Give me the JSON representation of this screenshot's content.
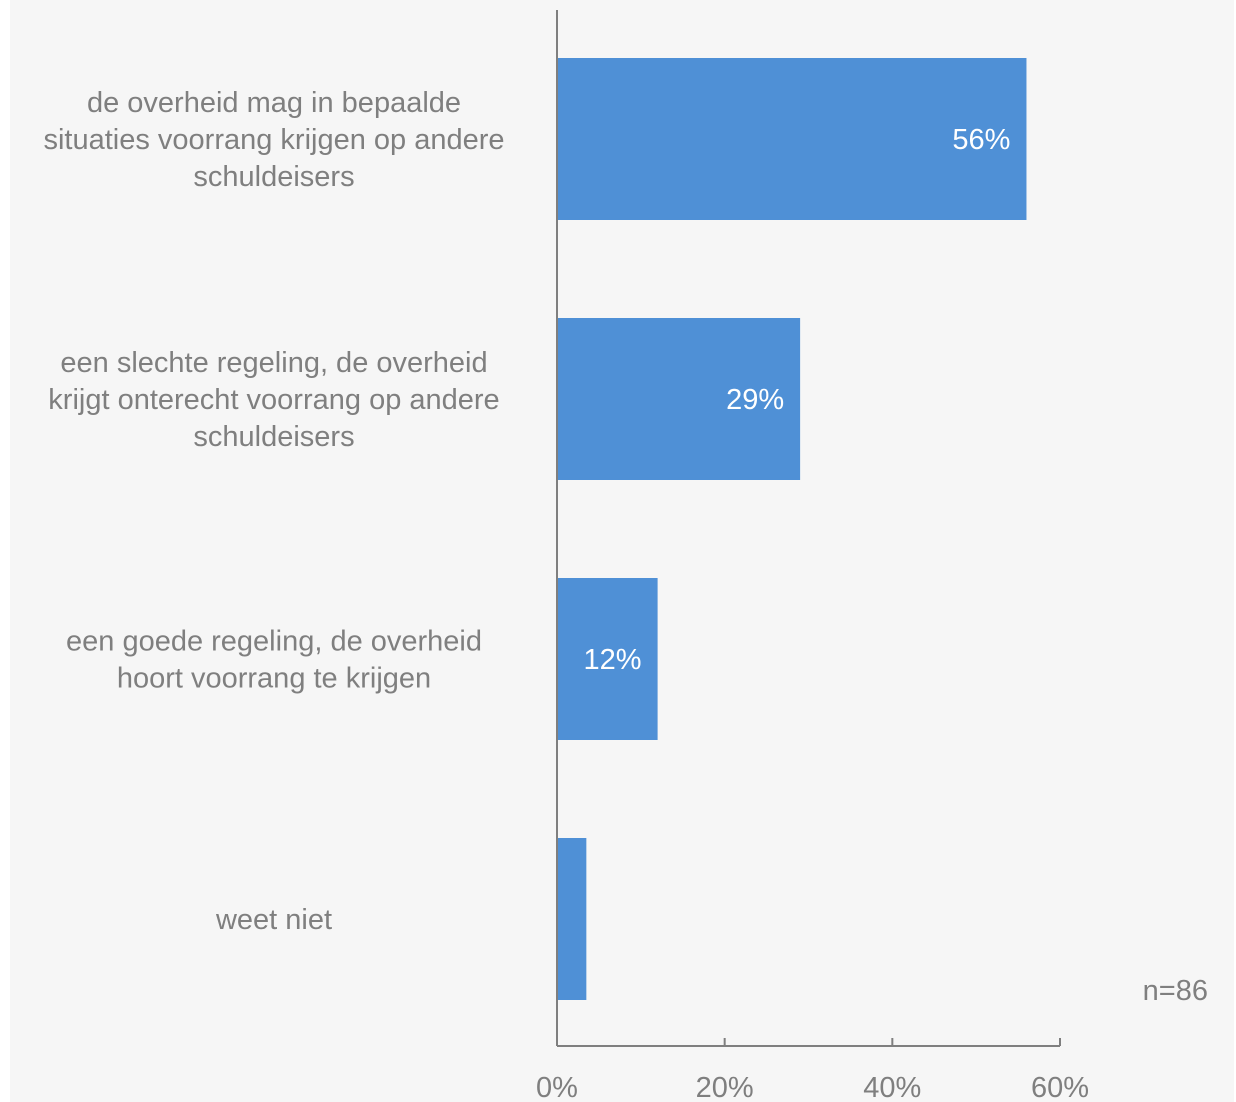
{
  "chart_data": {
    "type": "bar",
    "orientation": "horizontal",
    "categories": [
      [
        "de overheid mag in bepaalde",
        "situaties voorrang krijgen op andere",
        "schuldeisers"
      ],
      [
        "een slechte regeling, de overheid",
        "krijgt onterecht voorrang op andere",
        "schuldeisers"
      ],
      [
        "een goede regeling, de overheid",
        "hoort voorrang te krijgen"
      ],
      [
        "weet niet"
      ]
    ],
    "values": [
      56,
      29,
      12,
      3.5
    ],
    "data_labels": [
      "56%",
      "29%",
      "12%",
      ""
    ],
    "xlim": [
      0,
      60
    ],
    "x_ticks": [
      0,
      20,
      40,
      60
    ],
    "x_tick_labels": [
      "0%",
      "20%",
      "40%",
      "60%"
    ],
    "grid": false,
    "bar_color": "#4f90d6",
    "note": "n=86"
  }
}
